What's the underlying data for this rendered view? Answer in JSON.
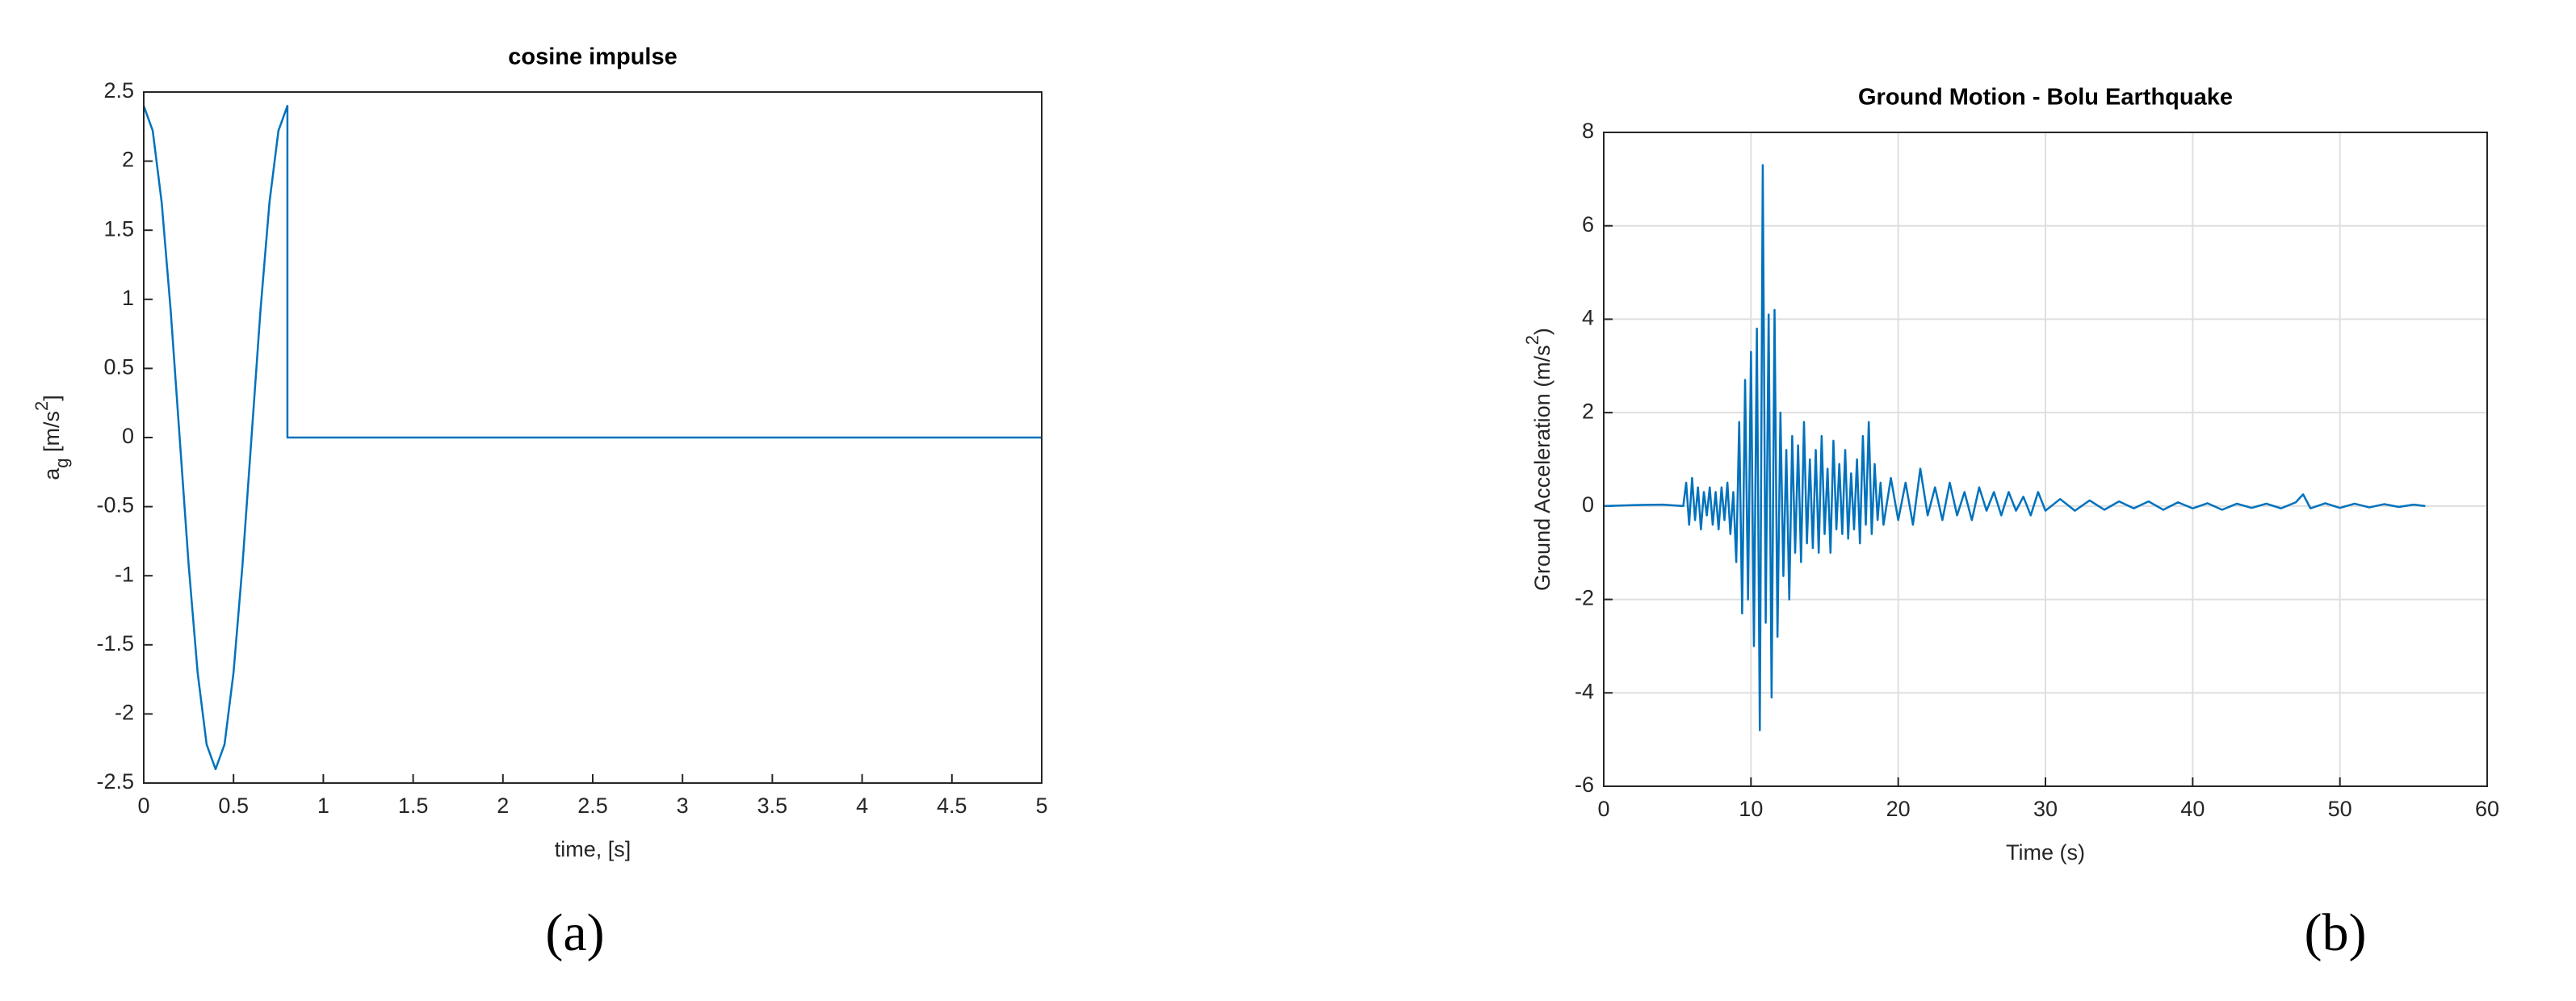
{
  "chart_data": [
    {
      "type": "line",
      "title": "cosine impulse",
      "xlabel": "time, [s]",
      "ylabel": [
        {
          "text": "a"
        },
        {
          "text": "g",
          "shift": "sub"
        },
        {
          "text": " [m/s"
        },
        {
          "text": "2",
          "shift": "super"
        },
        {
          "text": "]"
        }
      ],
      "x": [
        0,
        0.05,
        0.1,
        0.15,
        0.2,
        0.25,
        0.3,
        0.35,
        0.4,
        0.45,
        0.5,
        0.55,
        0.6,
        0.65,
        0.7,
        0.75,
        0.8,
        0.8,
        5
      ],
      "series": [
        {
          "color": "#0072bd",
          "values": [
            2.4,
            2.22,
            1.7,
            0.92,
            0,
            -0.92,
            -1.7,
            -2.22,
            -2.4,
            -2.22,
            -1.7,
            -0.92,
            0,
            0.92,
            1.7,
            2.22,
            2.4,
            0,
            0
          ]
        }
      ],
      "xlim": [
        0,
        5
      ],
      "xticks": [
        0,
        0.5,
        1,
        1.5,
        2,
        2.5,
        3,
        3.5,
        4,
        4.5,
        5
      ],
      "ylim": [
        -2.5,
        2.5
      ],
      "yticks": [
        -2.5,
        -2,
        -1.5,
        -1,
        -0.5,
        0,
        0.5,
        1,
        1.5,
        2,
        2.5
      ],
      "grid": false
    },
    {
      "type": "line",
      "title": "Ground Motion - Bolu Earthquake",
      "xlabel": "Time (s)",
      "ylabel": [
        {
          "text": "Ground Acceleration (m/s"
        },
        {
          "text": "2",
          "shift": "super"
        },
        {
          "text": ")"
        }
      ],
      "x": [
        0,
        2,
        4,
        5.4,
        5.6,
        5.8,
        6.0,
        6.2,
        6.4,
        6.6,
        6.8,
        7.0,
        7.2,
        7.4,
        7.6,
        7.8,
        8.0,
        8.2,
        8.4,
        8.6,
        8.8,
        9.0,
        9.2,
        9.4,
        9.6,
        9.8,
        10.0,
        10.2,
        10.4,
        10.6,
        10.8,
        11.0,
        11.2,
        11.4,
        11.6,
        11.8,
        12.0,
        12.2,
        12.4,
        12.6,
        12.8,
        13.0,
        13.2,
        13.4,
        13.6,
        13.8,
        14.0,
        14.2,
        14.4,
        14.6,
        14.8,
        15.0,
        15.2,
        15.4,
        15.6,
        15.8,
        16.0,
        16.2,
        16.4,
        16.6,
        16.8,
        17.0,
        17.2,
        17.4,
        17.6,
        17.8,
        18.0,
        18.2,
        18.4,
        18.6,
        18.8,
        19.0,
        19.5,
        20,
        20.5,
        21,
        21.5,
        22,
        22.5,
        23,
        23.5,
        24,
        24.5,
        25,
        25.5,
        26,
        26.5,
        27,
        27.5,
        28,
        28.5,
        29,
        29.5,
        30,
        31,
        32,
        33,
        34,
        35,
        36,
        37,
        38,
        39,
        40,
        41,
        42,
        43,
        44,
        45,
        46,
        47,
        47.5,
        48,
        49,
        50,
        51,
        52,
        53,
        54,
        55,
        55.8
      ],
      "series": [
        {
          "color": "#0072bd",
          "values": [
            0,
            0.02,
            0.03,
            0,
            0.5,
            -0.4,
            0.6,
            -0.3,
            0.4,
            -0.5,
            0.3,
            -0.2,
            0.4,
            -0.4,
            0.3,
            -0.5,
            0.4,
            -0.3,
            0.5,
            -0.6,
            0.3,
            -1.2,
            1.8,
            -2.3,
            2.7,
            -2.0,
            3.3,
            -3.0,
            3.8,
            -4.8,
            7.3,
            -2.5,
            4.1,
            -4.1,
            4.2,
            -2.8,
            2.0,
            -1.5,
            1.2,
            -2.0,
            1.5,
            -1.0,
            1.3,
            -1.2,
            1.8,
            -0.8,
            1.0,
            -0.9,
            1.2,
            -1.0,
            1.5,
            -0.6,
            0.8,
            -1.0,
            1.4,
            -0.5,
            0.9,
            -0.6,
            1.2,
            -0.7,
            0.7,
            -0.5,
            1.0,
            -0.8,
            1.5,
            -0.4,
            1.8,
            -0.6,
            0.9,
            -0.3,
            0.5,
            -0.4,
            0.6,
            -0.3,
            0.5,
            -0.4,
            0.8,
            -0.2,
            0.4,
            -0.3,
            0.5,
            -0.2,
            0.3,
            -0.3,
            0.4,
            -0.1,
            0.3,
            -0.2,
            0.3,
            -0.1,
            0.2,
            -0.2,
            0.3,
            -0.1,
            0.15,
            -0.1,
            0.12,
            -0.08,
            0.1,
            -0.05,
            0.1,
            -0.08,
            0.08,
            -0.05,
            0.06,
            -0.08,
            0.05,
            -0.04,
            0.05,
            -0.05,
            0.08,
            0.25,
            -0.05,
            0.06,
            -0.04,
            0.05,
            -0.03,
            0.04,
            -0.02,
            0.03,
            0
          ]
        }
      ],
      "xlim": [
        0,
        60
      ],
      "xticks": [
        0,
        10,
        20,
        30,
        40,
        50,
        60
      ],
      "ylim": [
        -6,
        8
      ],
      "yticks": [
        -6,
        -4,
        -2,
        0,
        2,
        4,
        6,
        8
      ],
      "grid": true
    }
  ],
  "panel_labels": [
    "(a)",
    "(b)"
  ]
}
